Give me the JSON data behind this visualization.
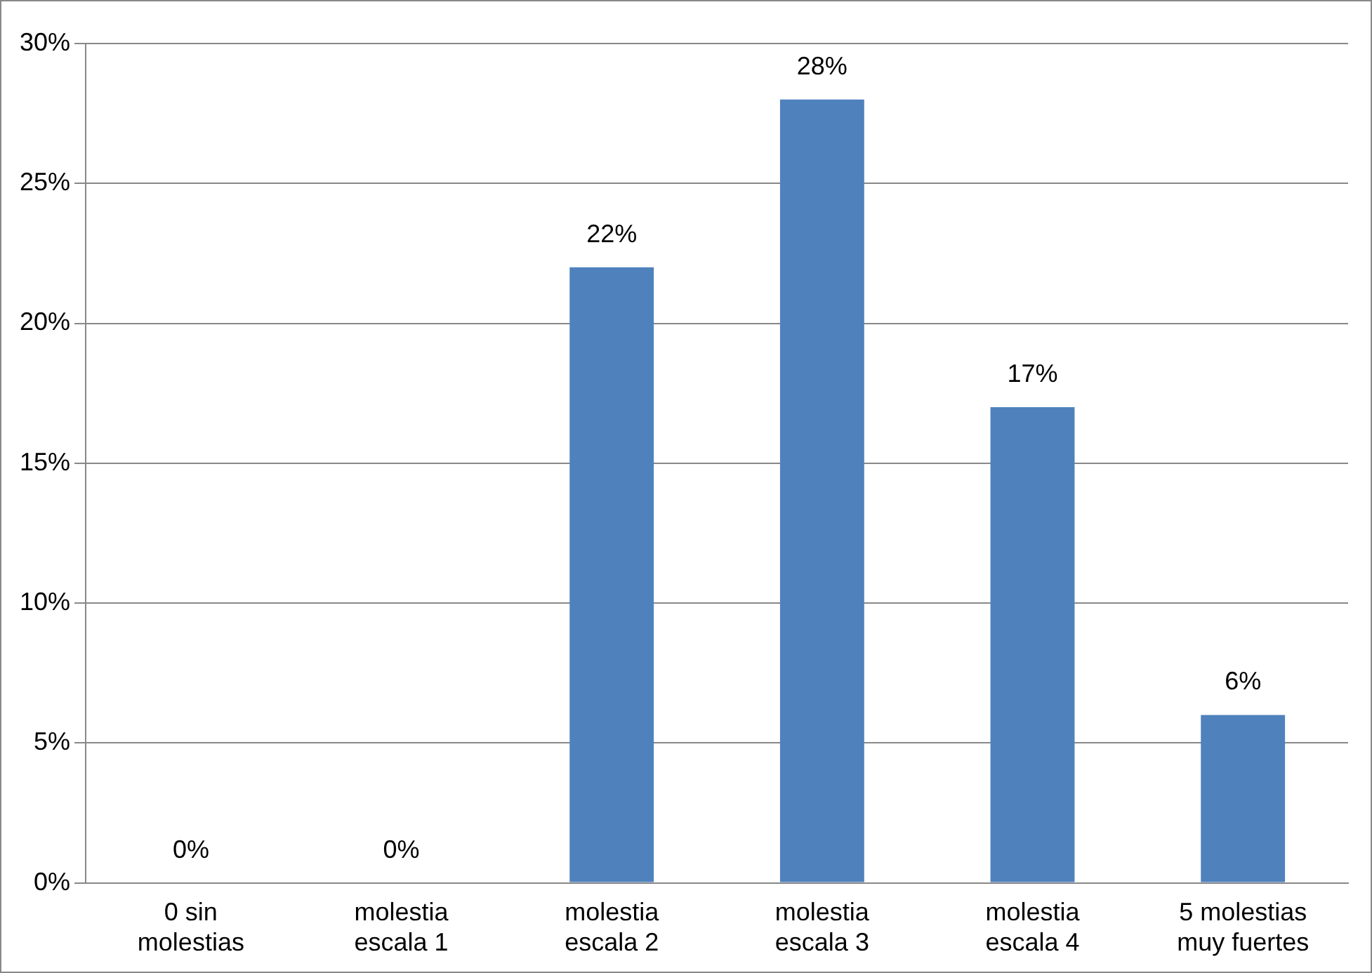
{
  "chart_data": {
    "type": "bar",
    "categories": [
      "0 sin molestias",
      "molestia escala 1",
      "molestia escala 2",
      "molestia escala 3",
      "molestia escala 4",
      "5 molestias muy fuertes"
    ],
    "values": [
      0,
      0,
      22,
      28,
      17,
      6
    ],
    "value_labels": [
      "0%",
      "0%",
      "22%",
      "28%",
      "17%",
      "6%"
    ],
    "color": "#4f81bd",
    "ylim": [
      0,
      30
    ],
    "yticks": [
      {
        "value": 0,
        "label": "0%"
      },
      {
        "value": 5,
        "label": "5%"
      },
      {
        "value": 10,
        "label": "10%"
      },
      {
        "value": 15,
        "label": "15%"
      },
      {
        "value": 20,
        "label": "20%"
      },
      {
        "value": 25,
        "label": "25%"
      },
      {
        "value": 30,
        "label": "30%"
      }
    ],
    "grid": "y",
    "legend": false
  }
}
